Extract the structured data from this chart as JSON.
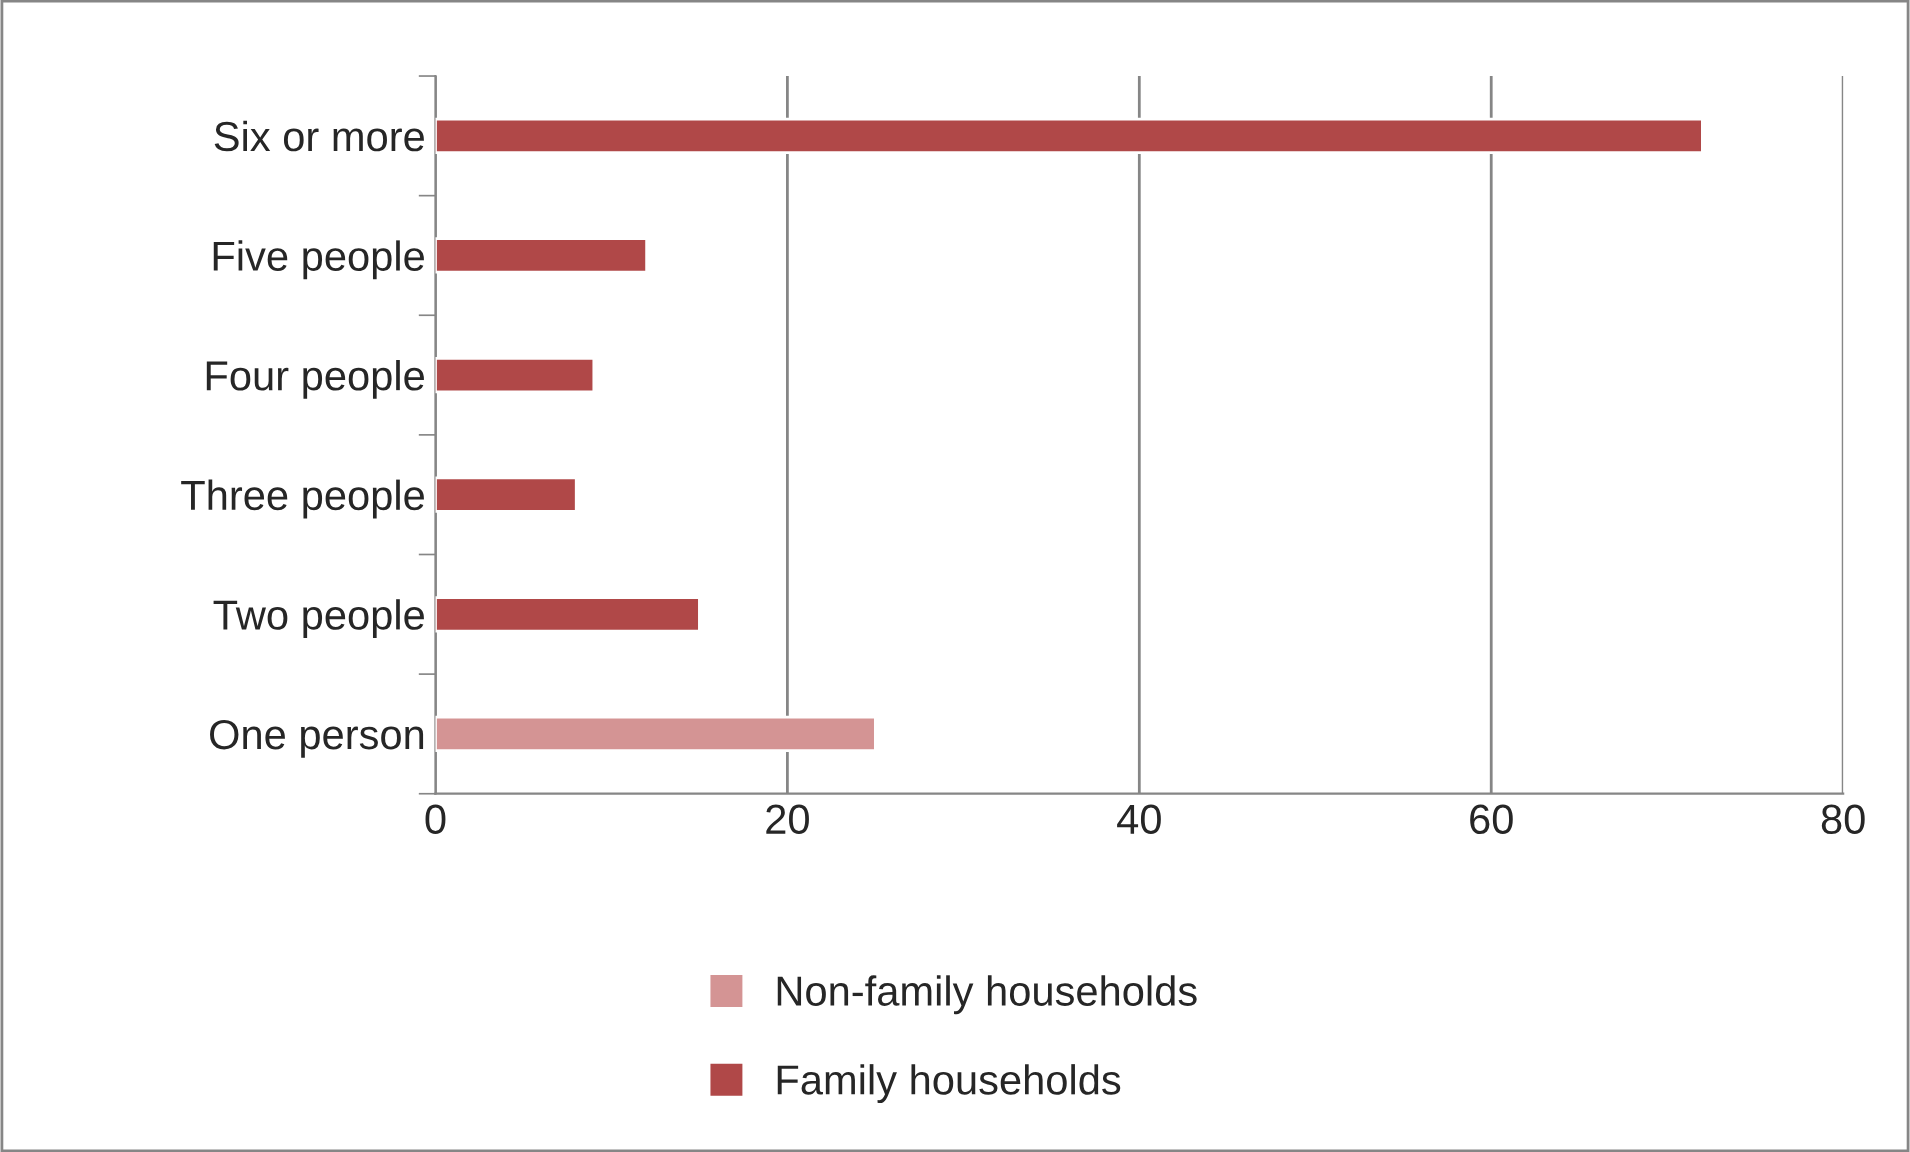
{
  "chart_data": {
    "type": "bar",
    "orientation": "horizontal",
    "stacked": true,
    "categories": [
      "Six or more",
      "Five people",
      "Four people",
      "Three people",
      "Two people",
      "One person"
    ],
    "series": [
      {
        "name": "Non-family households",
        "color": "#d49494",
        "values": [
          null,
          null,
          null,
          null,
          null,
          25
        ]
      },
      {
        "name": "Family households",
        "color": "#b04848",
        "values": [
          72,
          12,
          9,
          8,
          15,
          null
        ]
      }
    ],
    "xlim": [
      0,
      80
    ],
    "xticks": [
      0,
      20,
      40,
      60,
      80
    ],
    "grid": "x",
    "legend": "bottom"
  }
}
